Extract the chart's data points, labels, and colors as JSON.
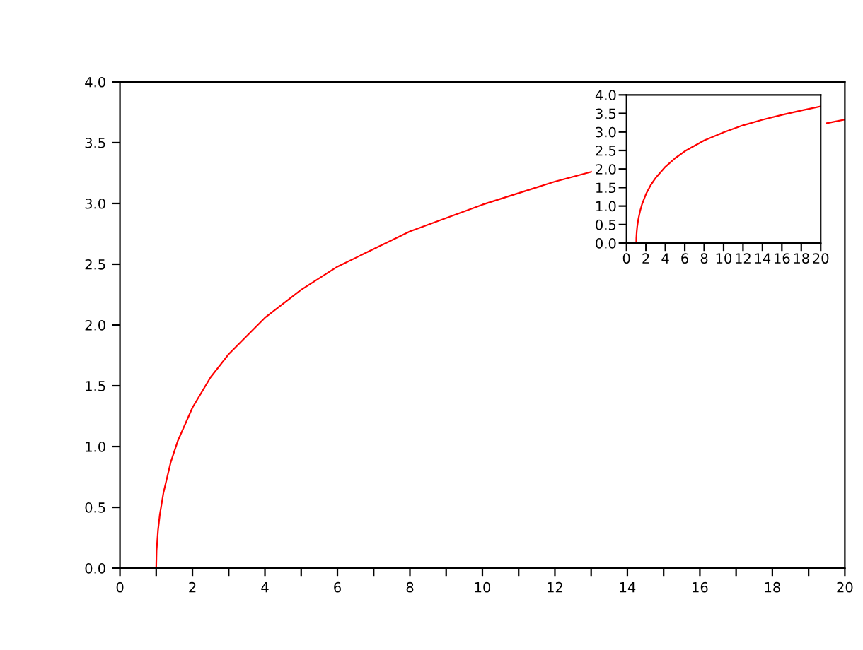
{
  "chart_data": [
    {
      "type": "line",
      "x": [
        1,
        1.01,
        1.05,
        1.1,
        1.2,
        1.4,
        1.6,
        2,
        2.5,
        3,
        4,
        5,
        6,
        8,
        10,
        12,
        13,
        14,
        15,
        16,
        17,
        18,
        19,
        19.5,
        20
      ],
      "series": [
        {
          "color": "#ff0000",
          "values": [
            0,
            0.14,
            0.31,
            0.44,
            0.62,
            0.87,
            1.05,
            1.32,
            1.57,
            1.76,
            2.06,
            2.29,
            2.48,
            2.77,
            2.99,
            3.18,
            3.26,
            null,
            null,
            null,
            null,
            null,
            null,
            3.66,
            3.69
          ]
        }
      ],
      "xlim": [
        0,
        20
      ],
      "ylim": [
        0,
        4
      ],
      "xticks": [
        0,
        {
          "value": 1,
          "label": null
        },
        2,
        {
          "value": 3,
          "label": null
        },
        4,
        {
          "value": 5,
          "label": null
        },
        6,
        {
          "value": 7,
          "label": null
        },
        8,
        {
          "value": 9,
          "label": null
        },
        10,
        {
          "value": 11,
          "label": null
        },
        12,
        {
          "value": 13,
          "label": null
        },
        14,
        {
          "value": 15,
          "label": null
        },
        16,
        {
          "value": 17,
          "label": null
        },
        18,
        {
          "value": 19,
          "label": null
        },
        20
      ],
      "yticks": [
        {
          "value": 0,
          "label": "0.0"
        },
        0.5,
        {
          "value": 1,
          "label": "1.0"
        },
        1.5,
        {
          "value": 2,
          "label": "2.0"
        },
        2.5,
        {
          "value": 3,
          "label": "3.0"
        },
        3.5,
        {
          "value": 4,
          "label": "4.0"
        }
      ],
      "grid": false,
      "legend": false,
      "marker": "none",
      "line_style": "solid"
    },
    {
      "type": "line",
      "x": [
        1,
        1.01,
        1.05,
        1.1,
        1.2,
        1.4,
        1.6,
        2,
        2.5,
        3,
        4,
        5,
        6,
        8,
        10,
        12,
        14,
        16,
        18,
        20
      ],
      "series": [
        {
          "color": "#ff0000",
          "values": [
            0,
            0.14,
            0.31,
            0.44,
            0.62,
            0.87,
            1.05,
            1.32,
            1.57,
            1.76,
            2.06,
            2.29,
            2.48,
            2.77,
            2.99,
            3.18,
            3.33,
            3.46,
            3.58,
            3.69
          ]
        }
      ],
      "xlim": [
        0,
        20
      ],
      "ylim": [
        0,
        4
      ],
      "xticks": [
        0,
        2,
        4,
        6,
        8,
        10,
        12,
        14,
        16,
        18,
        20
      ],
      "yticks": [
        {
          "value": 0,
          "label": "0.0"
        },
        0.5,
        {
          "value": 1,
          "label": "1.0"
        },
        1.5,
        {
          "value": 2,
          "label": "2.0"
        },
        2.5,
        {
          "value": 3,
          "label": "3.0"
        },
        3.5,
        {
          "value": 4,
          "label": "4.0"
        }
      ],
      "grid": false,
      "legend": false,
      "marker": "none",
      "line_style": "solid"
    }
  ]
}
